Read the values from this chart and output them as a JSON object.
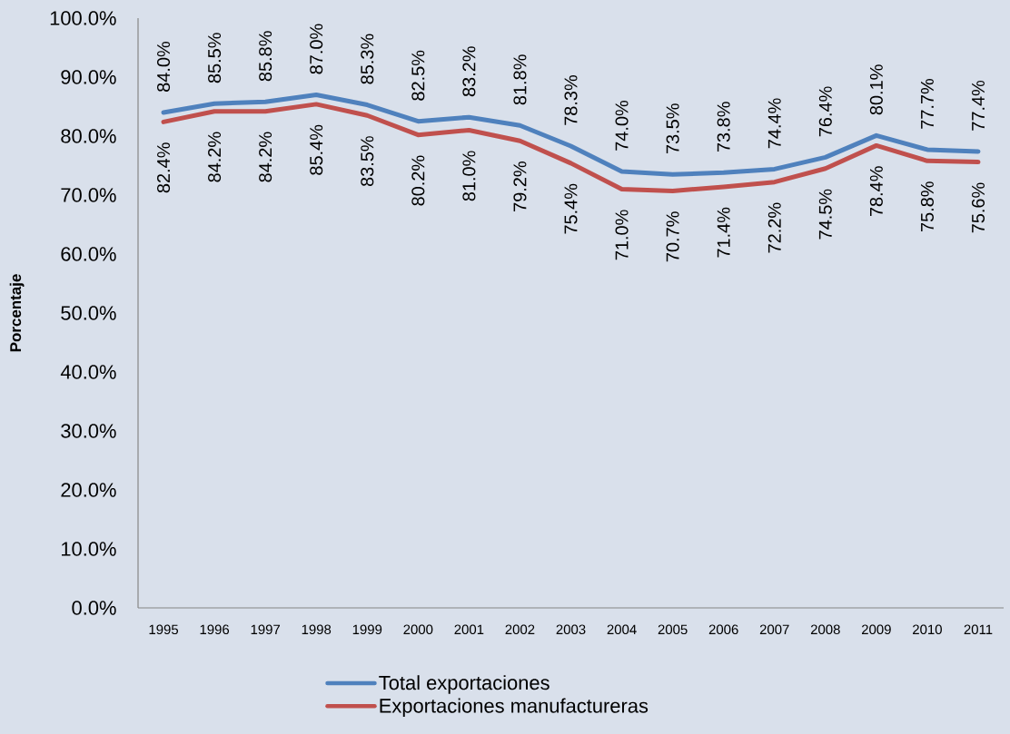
{
  "chart_data": {
    "type": "line",
    "ylabel": "Porcentaje",
    "categories": [
      "1995",
      "1996",
      "1997",
      "1998",
      "1999",
      "2000",
      "2001",
      "2002",
      "2003",
      "2004",
      "2005",
      "2006",
      "2007",
      "2008",
      "2009",
      "2010",
      "2011"
    ],
    "ylim": [
      0,
      100
    ],
    "yticks": [
      {
        "value": 0,
        "label": "0.0%"
      },
      {
        "value": 10,
        "label": "10.0%"
      },
      {
        "value": 20,
        "label": "20.0%"
      },
      {
        "value": 30,
        "label": "30.0%"
      },
      {
        "value": 40,
        "label": "40.0%"
      },
      {
        "value": 50,
        "label": "50.0%"
      },
      {
        "value": 60,
        "label": "60.0%"
      },
      {
        "value": 70,
        "label": "70.0%"
      },
      {
        "value": 80,
        "label": "80.0%"
      },
      {
        "value": 90,
        "label": "90.0%"
      },
      {
        "value": 100,
        "label": "100.0%"
      }
    ],
    "series": [
      {
        "name": "Total exportaciones",
        "color": "#4f81bd",
        "values": [
          84.0,
          85.5,
          85.8,
          87.0,
          85.3,
          82.5,
          83.2,
          81.8,
          78.3,
          74.0,
          73.5,
          73.8,
          74.4,
          76.4,
          80.1,
          77.7,
          77.4
        ],
        "value_labels": [
          "84.0%",
          "85.5%",
          "85.8%",
          "87.0%",
          "85.3%",
          "82.5%",
          "83.2%",
          "81.8%",
          "78.3%",
          "74.0%",
          "73.5%",
          "73.8%",
          "74.4%",
          "76.4%",
          "80.1%",
          "77.7%",
          "77.4%"
        ]
      },
      {
        "name": "Exportaciones manufactureras",
        "color": "#c0504d",
        "values": [
          82.4,
          84.2,
          84.2,
          85.4,
          83.5,
          80.2,
          81.0,
          79.2,
          75.4,
          71.0,
          70.7,
          71.4,
          72.2,
          74.5,
          78.4,
          75.8,
          75.6
        ],
        "value_labels": [
          "82.4%",
          "84.2%",
          "84.2%",
          "85.4%",
          "83.5%",
          "80.2%",
          "81.0%",
          "79.2%",
          "75.4%",
          "71.0%",
          "70.7%",
          "71.4%",
          "72.2%",
          "74.5%",
          "78.4%",
          "75.8%",
          "75.6%"
        ]
      }
    ],
    "legend": "bottom",
    "grid": false,
    "marker": "none",
    "line_style": "solid"
  }
}
